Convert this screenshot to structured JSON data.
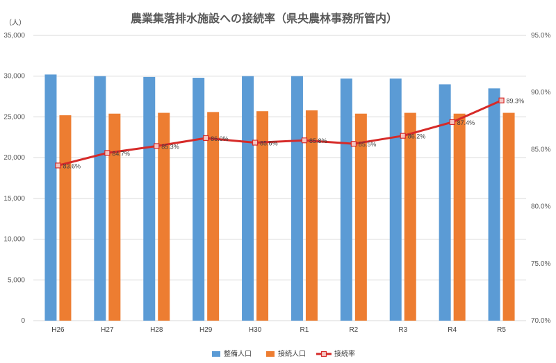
{
  "colors": {
    "bar_seibi": "#5B9BD5",
    "bar_setsuzoku": "#ED7D31",
    "line": "#D62A28",
    "marker_fill": "#F4C7C3",
    "grid": "#D9D9D9",
    "text": "#595959"
  },
  "chart_data": {
    "type": "bar",
    "title": "農業集落排水施設への接続率（県央農林事務所管内）",
    "ylabel": "（人）",
    "categories": [
      "H26",
      "H27",
      "H28",
      "H29",
      "H30",
      "R1",
      "R2",
      "R3",
      "R4",
      "R5"
    ],
    "ylim": [
      0,
      35000
    ],
    "yticks": [
      0,
      5000,
      10000,
      15000,
      20000,
      25000,
      30000,
      35000
    ],
    "ytick_labels": [
      "0",
      "5,000",
      "10,000",
      "15,000",
      "20,000",
      "25,000",
      "30,000",
      "35,000"
    ],
    "y2lim": [
      70,
      95
    ],
    "y2ticks": [
      70,
      75,
      80,
      85,
      90,
      95
    ],
    "y2tick_labels": [
      "70.0%",
      "75.0%",
      "80.0%",
      "85.0%",
      "90.0%",
      "95.0%"
    ],
    "grid": true,
    "legend_position": "bottom",
    "series": [
      {
        "name": "整備人口",
        "type": "bar",
        "axis": "left",
        "values": [
          30200,
          30000,
          29900,
          29800,
          30000,
          30000,
          29700,
          29700,
          29000,
          28500
        ]
      },
      {
        "name": "接続人口",
        "type": "bar",
        "axis": "left",
        "values": [
          25200,
          25400,
          25500,
          25600,
          25700,
          25800,
          25400,
          25500,
          25400,
          25500
        ]
      },
      {
        "name": "接続率",
        "type": "line",
        "axis": "right",
        "values": [
          83.6,
          84.7,
          85.3,
          86.0,
          85.6,
          85.8,
          85.5,
          86.2,
          87.4,
          89.3
        ],
        "labels": [
          "83.6%",
          "84.7%",
          "85.3%",
          "86.0%",
          "85.6%",
          "85.8%",
          "85.5%",
          "86.2%",
          "87.4%",
          "89.3%"
        ]
      }
    ]
  }
}
